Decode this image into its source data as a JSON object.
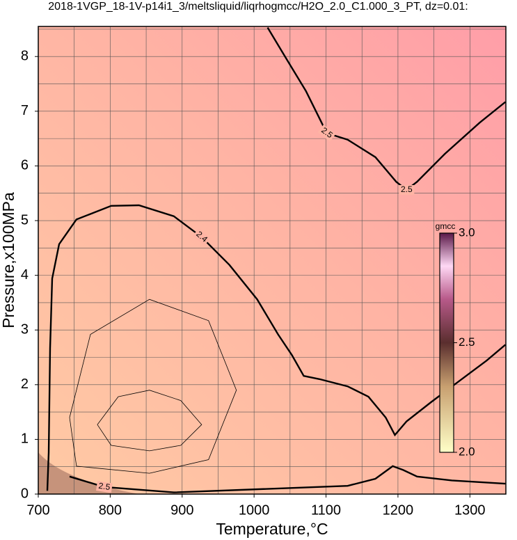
{
  "chart_data": {
    "type": "contour",
    "title": "2018-1VGP_18-1V-p14i1_3/meltsliquid/liqrhogmcc/H2O_2.0_C1.000_3_PT, dz=0.01:",
    "x_label": "Temperature,°C",
    "y_label": "Pressure,x100MPa",
    "xlim": [
      700,
      1350
    ],
    "ylim": [
      0,
      8.55
    ],
    "xticks": [
      700,
      800,
      900,
      1000,
      1100,
      1200,
      1300
    ],
    "yticks": [
      0,
      1,
      2,
      3,
      4,
      5,
      6,
      7,
      8
    ],
    "xgrid": [
      750,
      800,
      850,
      900,
      950,
      1000,
      1050,
      1100,
      1150,
      1200,
      1250,
      1300
    ],
    "ygrid": [
      0.5,
      1,
      1.5,
      2,
      2.5,
      3,
      3.5,
      4,
      4.5,
      5,
      5.5,
      6,
      6.5,
      7,
      7.5,
      8,
      8.5
    ],
    "contours": [
      {
        "level": 2.4,
        "x": [
          712.6,
          714.5,
          716.4,
          719.3,
          729,
          753,
          801.4,
          840,
          888.4,
          927,
          965.7,
          1004.3,
          1033.3,
          1052.7,
          1069,
          1091.3,
          1130,
          1159,
          1183,
          1195.7,
          1212,
          1245.9,
          1284.5,
          1323.2,
          1349.3
        ],
        "y": [
          0.06,
          0.76,
          2.67,
          3.94,
          4.57,
          5.02,
          5.27,
          5.28,
          5.08,
          4.7,
          4.19,
          3.56,
          2.92,
          2.54,
          2.16,
          2.1,
          1.97,
          1.78,
          1.4,
          1.08,
          1.33,
          1.68,
          2.06,
          2.44,
          2.73
        ]
      },
      {
        "level": 2.5,
        "x": [
          1018.8,
          1043,
          1072,
          1091.3,
          1101,
          1130,
          1168.6,
          1197.6,
          1212,
          1226.6,
          1265.2,
          1313.5,
          1349.3
        ],
        "y": [
          8.53,
          8.0,
          7.37,
          6.86,
          6.6,
          6.48,
          6.16,
          5.71,
          5.56,
          5.71,
          6.22,
          6.79,
          7.17
        ]
      },
      {
        "level": 2.5,
        "x": [
          743.5,
          791.8,
          888.4,
          1130,
          1168.6,
          1192.7,
          1207.2,
          1226.6,
          1274.9,
          1349.3
        ],
        "y": [
          0.32,
          0.13,
          0.03,
          0.15,
          0.28,
          0.51,
          0.44,
          0.32,
          0.25,
          0.19
        ]
      },
      {
        "x": [
          782.1,
          811.1,
          854.6,
          898.1,
          927.1,
          898.1,
          854.6,
          801.4,
          782.1
        ],
        "y": [
          1.27,
          1.78,
          1.9,
          1.71,
          1.27,
          0.89,
          0.79,
          0.89,
          1.27
        ]
      },
      {
        "x": [
          743.5,
          772.5,
          854.6,
          936.7,
          975.4,
          936.7,
          854.6,
          753.1,
          743.5
        ],
        "y": [
          1.4,
          2.92,
          3.56,
          3.17,
          1.9,
          0.63,
          0.38,
          0.51,
          1.4
        ]
      }
    ],
    "colorbar": {
      "label": "gmcc",
      "lim": [
        2.0,
        3.0
      ],
      "ticks": [
        {
          "value": 2.0,
          "label": "2.0"
        },
        2.5,
        {
          "value": 3.0,
          "label": "3.0"
        }
      ],
      "colorscale": [
        [
          2.0,
          "#ffffc8"
        ],
        [
          2.3,
          "#c8a070"
        ],
        [
          2.5,
          "#5a2e2e"
        ],
        [
          2.7,
          "#b85a8a"
        ],
        [
          2.85,
          "#ffd8f4"
        ],
        [
          3.0,
          "#5a1848"
        ]
      ]
    }
  }
}
